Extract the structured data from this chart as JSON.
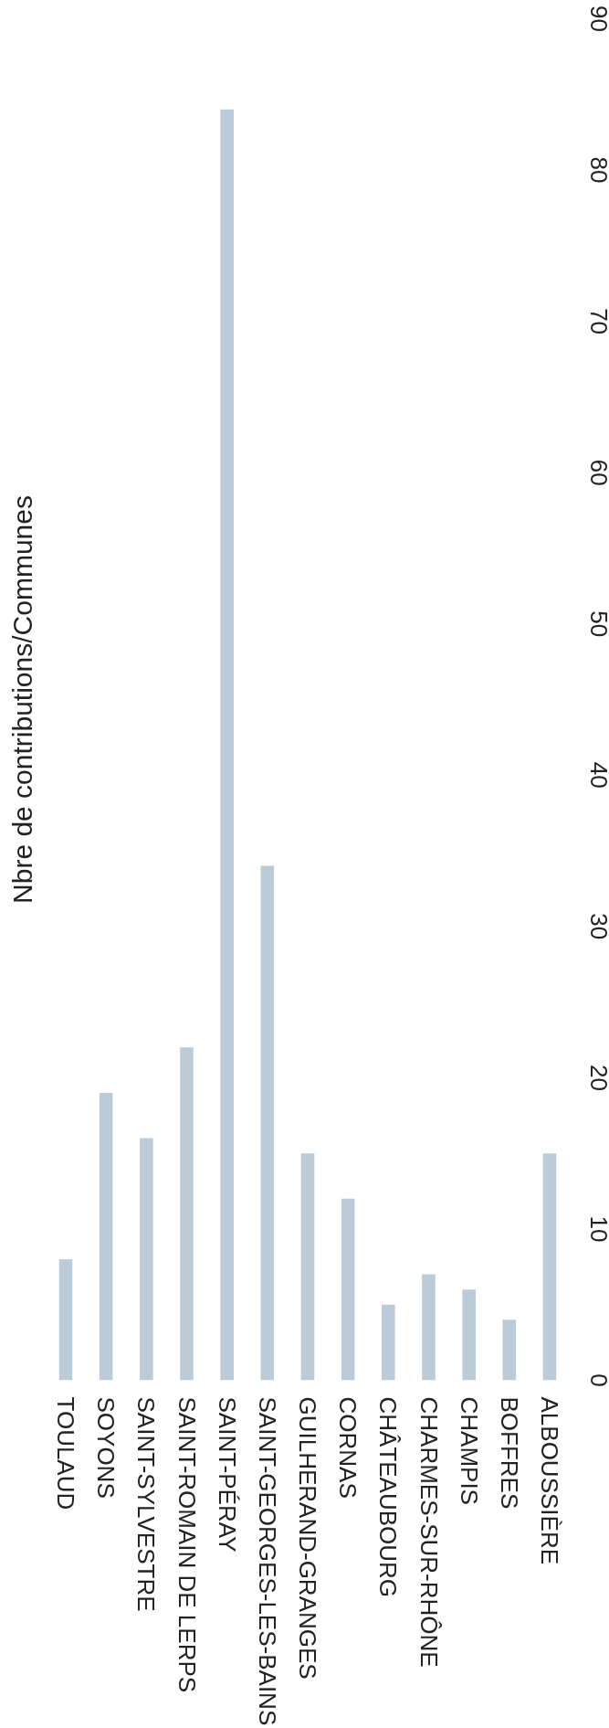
{
  "chart_data": {
    "type": "bar",
    "title": "Nbre de contributions/Communes",
    "categories": [
      "TOULAUD",
      "SOYONS",
      "SAINT-SYLVESTRE",
      "SAINT-ROMAIN DE LERPS",
      "SAINT-PÉRAY",
      "SAINT-GEORGES-LES-BAINS",
      "GUILHERAND-GRANGES",
      "CORNAS",
      "CHÂTEAUBOURG",
      "CHARMES-SUR-RHÔNE",
      "CHAMPIS",
      "BOFFRES",
      "ALBOUSSIÈRE"
    ],
    "values": [
      8,
      19,
      16,
      22,
      84,
      34,
      15,
      12,
      5,
      7,
      6,
      4,
      15
    ],
    "color": "#bccbd8",
    "ylim": [
      0,
      90
    ],
    "yticks": [
      0,
      10,
      20,
      30,
      40,
      50,
      60,
      70,
      80,
      90
    ],
    "grid": false
  }
}
